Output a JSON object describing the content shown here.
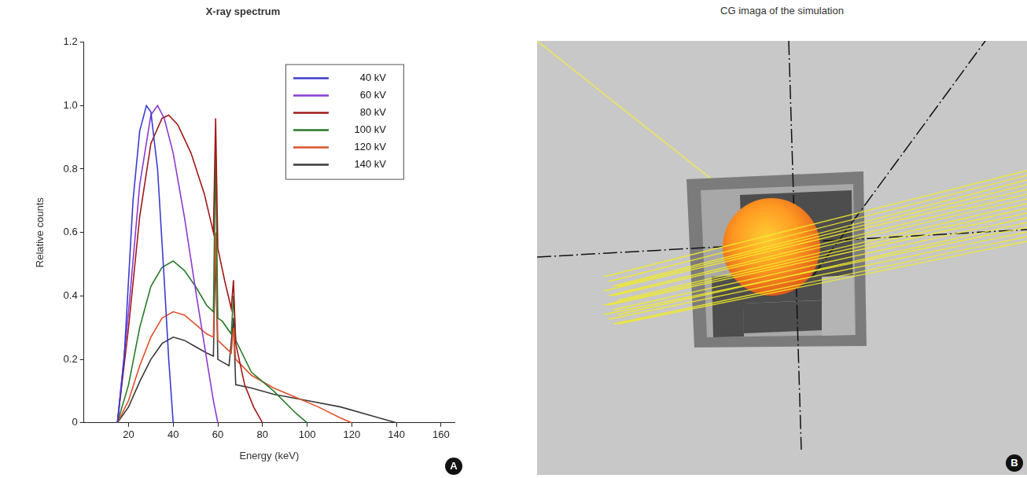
{
  "chart_data": {
    "type": "line",
    "panel_letter": "A",
    "title": "X-ray spectrum",
    "x_label": "Energy (keV)",
    "y_label": "Relative counts",
    "xlim": [
      0,
      166
    ],
    "xticks": [
      20,
      40,
      60,
      80,
      100,
      120,
      140,
      160
    ],
    "ylim": [
      0,
      1.2
    ],
    "yticks": [
      0,
      0.2,
      0.4,
      0.6,
      0.8,
      {
        "value": 1,
        "label": "1.0"
      },
      1.2
    ],
    "grid": false,
    "legend": "upper right",
    "series": [
      {
        "name": "40 kV",
        "color": "#3a3ad0",
        "x": [
          15,
          18,
          20,
          22,
          25,
          28,
          30,
          33,
          36,
          38,
          40
        ],
        "values": [
          0,
          0.2,
          0.45,
          0.7,
          0.92,
          1.0,
          0.98,
          0.8,
          0.45,
          0.2,
          0
        ]
      },
      {
        "name": "60 kV",
        "color": "#8a3ad0",
        "x": [
          15,
          20,
          25,
          30,
          33,
          36,
          40,
          45,
          50,
          55,
          58,
          60
        ],
        "values": [
          0,
          0.35,
          0.75,
          0.97,
          1.0,
          0.96,
          0.85,
          0.65,
          0.42,
          0.2,
          0.07,
          0
        ]
      },
      {
        "name": "80 kV",
        "color": "#a01818",
        "x": [
          15,
          20,
          25,
          30,
          35,
          38,
          42,
          48,
          54,
          58,
          59,
          60,
          63,
          66,
          67,
          68,
          72,
          76,
          80
        ],
        "values": [
          0,
          0.3,
          0.65,
          0.88,
          0.96,
          0.97,
          0.94,
          0.85,
          0.72,
          0.6,
          0.96,
          0.55,
          0.45,
          0.36,
          0.45,
          0.25,
          0.12,
          0.05,
          0
        ]
      },
      {
        "name": "100 kV",
        "color": "#2a7a2a",
        "x": [
          15,
          20,
          25,
          30,
          35,
          40,
          45,
          50,
          55,
          58,
          59,
          60,
          62,
          66,
          67,
          68,
          75,
          85,
          95,
          100
        ],
        "values": [
          0,
          0.12,
          0.3,
          0.43,
          0.49,
          0.51,
          0.48,
          0.43,
          0.37,
          0.35,
          0.85,
          0.33,
          0.32,
          0.28,
          0.4,
          0.26,
          0.16,
          0.1,
          0.03,
          0
        ]
      },
      {
        "name": "120 kV",
        "color": "#e0502a",
        "x": [
          15,
          20,
          25,
          30,
          35,
          40,
          45,
          50,
          55,
          58,
          59,
          60,
          66,
          67,
          68,
          75,
          85,
          95,
          105,
          115,
          120
        ],
        "values": [
          0,
          0.07,
          0.18,
          0.27,
          0.33,
          0.35,
          0.34,
          0.31,
          0.28,
          0.27,
          0.6,
          0.26,
          0.22,
          0.3,
          0.2,
          0.15,
          0.11,
          0.08,
          0.05,
          0.015,
          0
        ]
      },
      {
        "name": "140 kV",
        "color": "#3a3a3a",
        "x": [
          15,
          20,
          25,
          30,
          35,
          40,
          45,
          50,
          55,
          58,
          59,
          60,
          65,
          67,
          68,
          75,
          85,
          100,
          115,
          130,
          140
        ],
        "values": [
          0,
          0.05,
          0.13,
          0.2,
          0.25,
          0.27,
          0.26,
          0.24,
          0.22,
          0.21,
          0.55,
          0.2,
          0.18,
          0.33,
          0.12,
          0.11,
          0.09,
          0.07,
          0.05,
          0.02,
          0
        ]
      }
    ]
  },
  "panel_b": {
    "title": "CG imaga of the simulation",
    "panel_letter": "B"
  }
}
